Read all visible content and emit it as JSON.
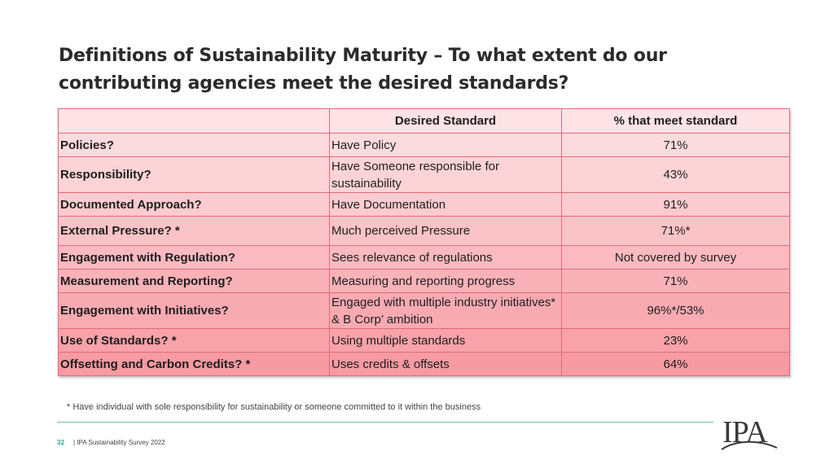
{
  "title": {
    "line1": "Definitions of Sustainability Maturity – To what extent do our",
    "line2": "contributing agencies meet the desired standards?"
  },
  "table": {
    "headers": [
      "",
      "Desired Standard",
      "% that meet standard"
    ],
    "rows": [
      {
        "question": "Policies?",
        "standard": "Have Policy",
        "percent": "71%"
      },
      {
        "question": "Responsibility?",
        "standard": "Have Someone responsible for sustainability",
        "percent": "43%"
      },
      {
        "question": "Documented Approach?",
        "standard": "Have Documentation",
        "percent": "91%"
      },
      {
        "question": "External Pressure? *",
        "standard": "Much perceived Pressure",
        "percent": "71%*"
      },
      {
        "question": "Engagement with Regulation?",
        "standard": "Sees relevance of regulations",
        "percent": "Not covered by survey"
      },
      {
        "question": "Measurement and Reporting?",
        "standard": "Measuring and reporting progress",
        "percent": "71%"
      },
      {
        "question": "Engagement with Initiatives?",
        "standard": "Engaged with multiple industry initiatives* & B Corp’ ambition",
        "percent": "96%*/53%"
      },
      {
        "question": "Use of Standards? *",
        "standard": "Using multiple standards",
        "percent": "23%"
      },
      {
        "question": "Offsetting and Carbon Credits? *",
        "standard": "Uses credits & offsets",
        "percent": "64%"
      }
    ],
    "colors": {
      "top": "#fde3e5",
      "bottom": "#f79aa2",
      "border": "#e06a7a"
    }
  },
  "footnote": "* Have individual with sole responsibility for sustainability or someone committed to it within the business",
  "footer": {
    "page_number": "32",
    "survey_label": "| IPA Sustainability Survey 2022",
    "logo_text": "IPA"
  },
  "accent_color": "#5ec4b9"
}
